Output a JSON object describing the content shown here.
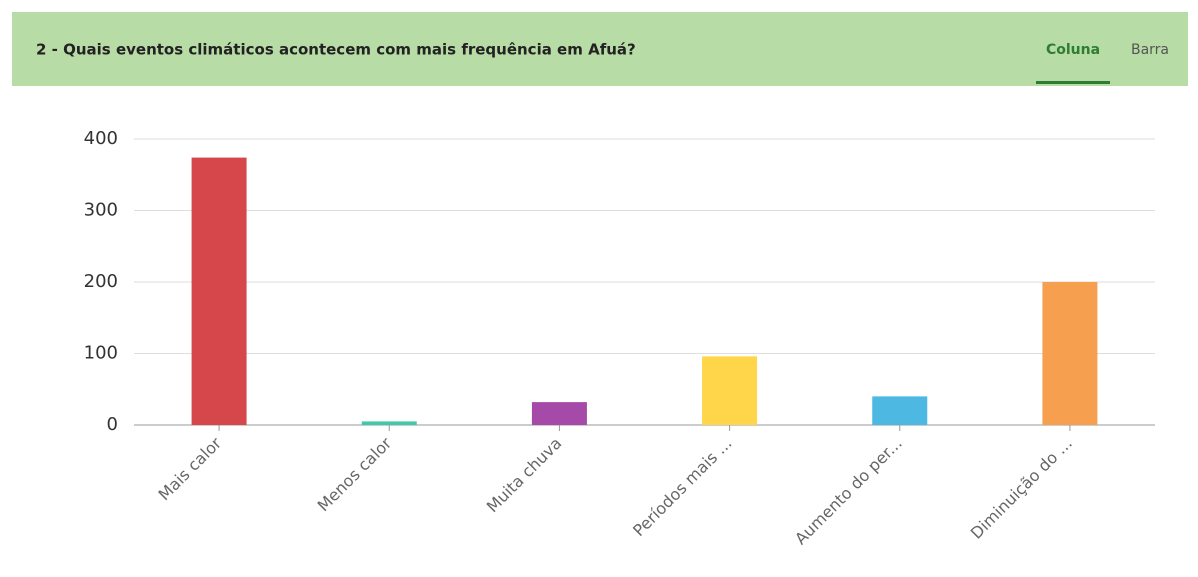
{
  "tabs": [
    "Coluna",
    "Barra"
  ],
  "active_tab": 0,
  "chart_data": {
    "type": "bar",
    "title": "2 - Quais eventos climáticos acontecem com mais frequência em Afuá?",
    "categories": [
      "Mais calor",
      "Menos calor",
      "Muita chuva",
      "Períodos mais ...",
      "Aumento do per...",
      "Diminuição do ..."
    ],
    "values": [
      374,
      5,
      32,
      96,
      40,
      200
    ],
    "colors": [
      "#d6474b",
      "#3fc9a6",
      "#a54aa8",
      "#ffd54a",
      "#4db8e2",
      "#f6a04f"
    ],
    "ylim": [
      0,
      400
    ],
    "yticks": [
      0,
      100,
      200,
      300,
      400
    ],
    "grid": true
  }
}
